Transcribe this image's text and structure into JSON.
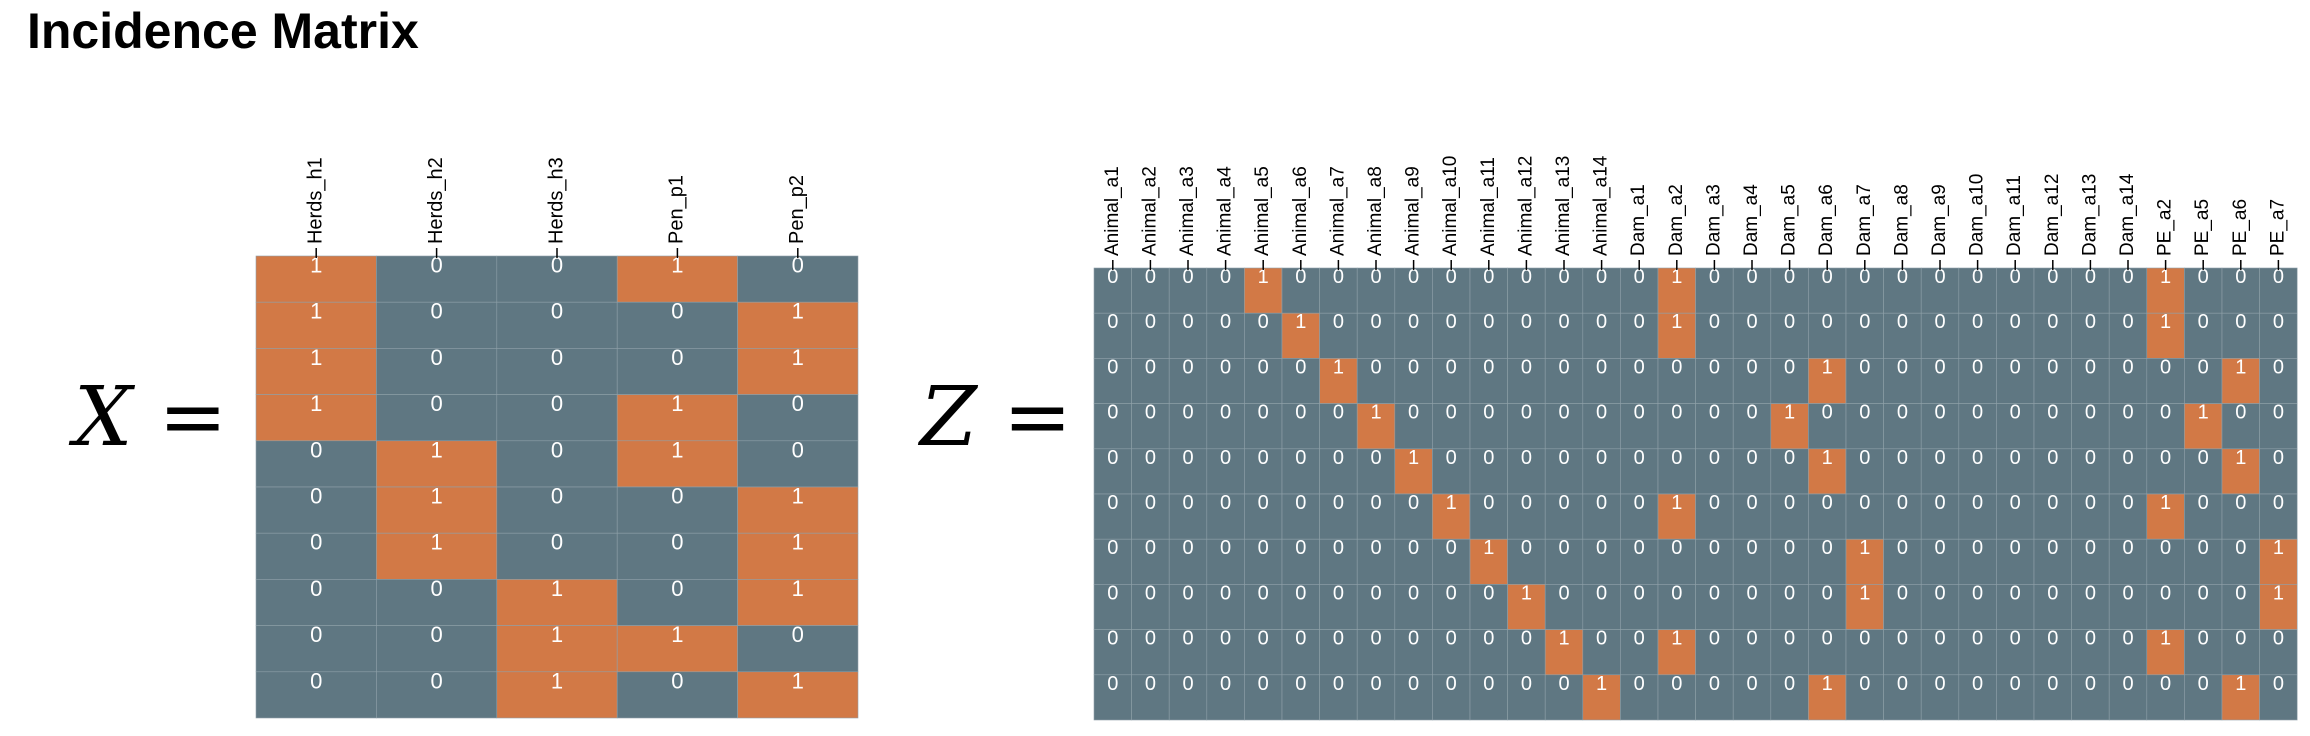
{
  "title": "Incidence Matrix",
  "colors": {
    "one": "#d27946",
    "zero": "#5f7782",
    "cell_text": "#ffffff",
    "grid": "#8fa1a9",
    "label_text": "#000000"
  },
  "matrices": [
    {
      "id": "x",
      "symbol": "X",
      "equals": "=",
      "columns": [
        "Herds_h1",
        "Herds_h2",
        "Herds_h3",
        "Pen_p1",
        "Pen_p2"
      ],
      "rows": [
        [
          1,
          0,
          0,
          1,
          0
        ],
        [
          1,
          0,
          0,
          0,
          1
        ],
        [
          1,
          0,
          0,
          0,
          1
        ],
        [
          1,
          0,
          0,
          1,
          0
        ],
        [
          0,
          1,
          0,
          1,
          0
        ],
        [
          0,
          1,
          0,
          0,
          1
        ],
        [
          0,
          1,
          0,
          0,
          1
        ],
        [
          0,
          0,
          1,
          0,
          1
        ],
        [
          0,
          0,
          1,
          1,
          0
        ],
        [
          0,
          0,
          1,
          0,
          1
        ]
      ]
    },
    {
      "id": "z",
      "symbol": "Z",
      "equals": "=",
      "columns": [
        "Animal_a1",
        "Animal_a2",
        "Animal_a3",
        "Animal_a4",
        "Animal_a5",
        "Animal_a6",
        "Animal_a7",
        "Animal_a8",
        "Animal_a9",
        "Animal_a10",
        "Animal_a11",
        "Animal_a12",
        "Animal_a13",
        "Animal_a14",
        "Dam_a1",
        "Dam_a2",
        "Dam_a3",
        "Dam_a4",
        "Dam_a5",
        "Dam_a6",
        "Dam_a7",
        "Dam_a8",
        "Dam_a9",
        "Dam_a10",
        "Dam_a11",
        "Dam_a12",
        "Dam_a13",
        "Dam_a14",
        "PE_a2",
        "PE_a5",
        "PE_a6",
        "PE_a7"
      ],
      "rows": [
        [
          0,
          0,
          0,
          0,
          1,
          0,
          0,
          0,
          0,
          0,
          0,
          0,
          0,
          0,
          0,
          1,
          0,
          0,
          0,
          0,
          0,
          0,
          0,
          0,
          0,
          0,
          0,
          0,
          1,
          0,
          0,
          0
        ],
        [
          0,
          0,
          0,
          0,
          0,
          1,
          0,
          0,
          0,
          0,
          0,
          0,
          0,
          0,
          0,
          1,
          0,
          0,
          0,
          0,
          0,
          0,
          0,
          0,
          0,
          0,
          0,
          0,
          1,
          0,
          0,
          0
        ],
        [
          0,
          0,
          0,
          0,
          0,
          0,
          1,
          0,
          0,
          0,
          0,
          0,
          0,
          0,
          0,
          0,
          0,
          0,
          0,
          1,
          0,
          0,
          0,
          0,
          0,
          0,
          0,
          0,
          0,
          0,
          1,
          0
        ],
        [
          0,
          0,
          0,
          0,
          0,
          0,
          0,
          1,
          0,
          0,
          0,
          0,
          0,
          0,
          0,
          0,
          0,
          0,
          1,
          0,
          0,
          0,
          0,
          0,
          0,
          0,
          0,
          0,
          0,
          1,
          0,
          0
        ],
        [
          0,
          0,
          0,
          0,
          0,
          0,
          0,
          0,
          1,
          0,
          0,
          0,
          0,
          0,
          0,
          0,
          0,
          0,
          0,
          1,
          0,
          0,
          0,
          0,
          0,
          0,
          0,
          0,
          0,
          0,
          1,
          0
        ],
        [
          0,
          0,
          0,
          0,
          0,
          0,
          0,
          0,
          0,
          1,
          0,
          0,
          0,
          0,
          0,
          1,
          0,
          0,
          0,
          0,
          0,
          0,
          0,
          0,
          0,
          0,
          0,
          0,
          1,
          0,
          0,
          0
        ],
        [
          0,
          0,
          0,
          0,
          0,
          0,
          0,
          0,
          0,
          0,
          1,
          0,
          0,
          0,
          0,
          0,
          0,
          0,
          0,
          0,
          1,
          0,
          0,
          0,
          0,
          0,
          0,
          0,
          0,
          0,
          0,
          1
        ],
        [
          0,
          0,
          0,
          0,
          0,
          0,
          0,
          0,
          0,
          0,
          0,
          1,
          0,
          0,
          0,
          0,
          0,
          0,
          0,
          0,
          1,
          0,
          0,
          0,
          0,
          0,
          0,
          0,
          0,
          0,
          0,
          1
        ],
        [
          0,
          0,
          0,
          0,
          0,
          0,
          0,
          0,
          0,
          0,
          0,
          0,
          1,
          0,
          0,
          1,
          0,
          0,
          0,
          0,
          0,
          0,
          0,
          0,
          0,
          0,
          0,
          0,
          1,
          0,
          0,
          0
        ],
        [
          0,
          0,
          0,
          0,
          0,
          0,
          0,
          0,
          0,
          0,
          0,
          0,
          0,
          1,
          0,
          0,
          0,
          0,
          0,
          1,
          0,
          0,
          0,
          0,
          0,
          0,
          0,
          0,
          0,
          0,
          1,
          0
        ]
      ]
    }
  ]
}
